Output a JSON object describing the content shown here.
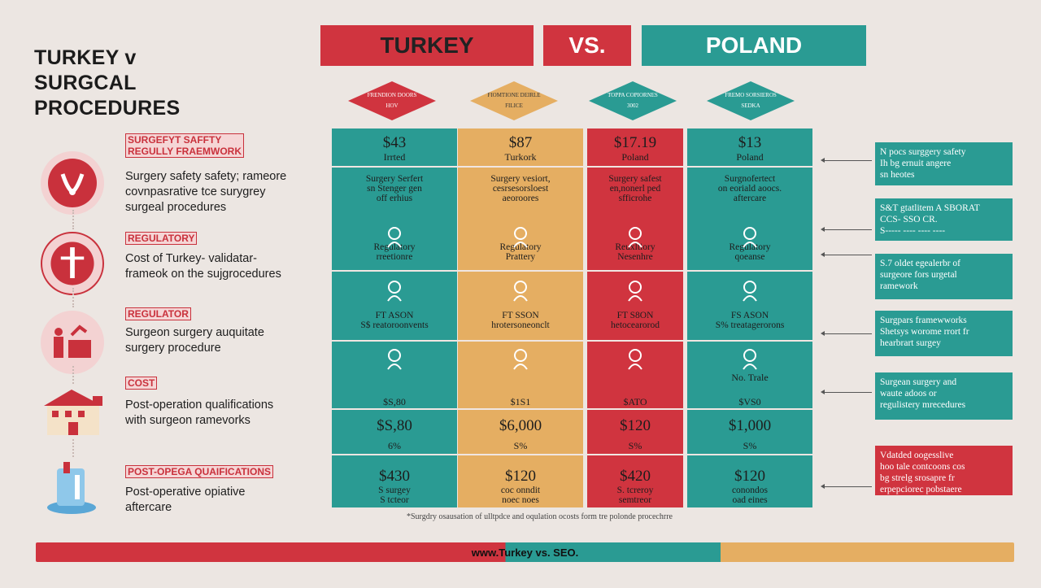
{
  "title": "TURKEY v\nSURGCAL\nPROCEDURES",
  "header": {
    "left": "TURKEY",
    "mid": "VS.",
    "right": "POLAND"
  },
  "colors": {
    "red": "#d0343f",
    "teal": "#2a9b93",
    "orange": "#e5ae62",
    "bg": "#ece6e2"
  },
  "diamonds": [
    {
      "line1": "FRENDION DOORS",
      "line2": "HOV"
    },
    {
      "line1": "FIOMTIONE DEIRLE",
      "line2": "FILICE"
    },
    {
      "line1": "TOPPA COPIORNES",
      "line2": "3002"
    },
    {
      "line1": "FREMO SORSIEROS",
      "line2": "SEDKA"
    }
  ],
  "left_items": [
    {
      "tag": "SURGEFYT SAFFTY\nREGULLY FRAEMWORK",
      "text": "Surgery safety safety; rameore\ncovnpasrative tce surygrey\nsurgeal procedures",
      "icon": "hands-icon"
    },
    {
      "tag": "REGULATORY",
      "text": "Cost of Turkey- validatar-\nframeok on the sujgrocedures",
      "icon": "regulation-icon"
    },
    {
      "tag": "REGULATOR",
      "text": "Surgeon surgery auquitate\nsurgery procedure",
      "icon": "surgeon-icon"
    },
    {
      "tag": "COST",
      "text": "Post-operation qualifications\nwith surgeon ramevorks",
      "icon": "hospital-icon"
    },
    {
      "tag": "POST-OPEGA QUAIFICATIONS",
      "text": "Post-operative opiative\naftercare",
      "icon": "aftercare-icon"
    }
  ],
  "columns": [
    {
      "price_top": "$43",
      "label_top": "Irrted",
      "desc": "Surgery Serfert\nsn Stenger gen\noff erhius",
      "reg": "Regulatory\nrreetionre",
      "fee": "FT ASON\nS$ reatoroonvents",
      "icon_label": "",
      "sv": "$S,80",
      "total": "$S,80",
      "pct": "6%",
      "price_bottom": "$430",
      "note_bottom": "S surgey\nS tcteor"
    },
    {
      "price_top": "$87",
      "label_top": "Turkork",
      "desc": "Surgery vesiort,\ncesrsesorsloest\naeoroores",
      "reg": "Regulatory\nPrattery",
      "fee": "FT SSON\nhrotersoneonclt",
      "icon_label": "",
      "sv": "$1S1",
      "total": "$6,000",
      "pct": "S%",
      "price_bottom": "$120",
      "note_bottom": "coc onndit\nnoec noes"
    },
    {
      "price_top": "$17.19",
      "label_top": "Poland",
      "desc": "Surgery safest\nen,nonerl ped\nsfficrohe",
      "reg": "Reuxltiory\nNesenhre",
      "fee": "FT S8ON\nhetocearorod",
      "icon_label": "",
      "sv": "$ATO",
      "total": "$120",
      "pct": "S%",
      "price_bottom": "$420",
      "note_bottom": "S. tcreroy\nsemtreor"
    },
    {
      "price_top": "$13",
      "label_top": "Poland",
      "desc": "Surgnofertect\non eoriald aoocs.\naftercare",
      "reg": "Regulatory\nqoeanse",
      "fee": "FS ASON\nS% treatagerorons",
      "icon_label": "No. Trale",
      "sv": "$VS0",
      "total": "$1,000",
      "pct": "S%",
      "price_bottom": "$120",
      "note_bottom": "conondos\noad eines"
    }
  ],
  "right_boxes": [
    {
      "text": "N pocs surggery safety\nIh bg ernuit angere\nsn heotes"
    },
    {
      "text": "S&T gtatlitem A SBORAT\nCCS- SSO CR.\nS----- ---- ---- ----"
    },
    {
      "text": "S.7 oldet egealerbr of\nsurgeore fors urgetal\nramework"
    },
    {
      "text": "Surgpars framewworks\nShetsys worome rrort fr\nhearbrart surgey"
    },
    {
      "text": "Surgean surgery and\nwaute adoos or\nregulistery mrecedures"
    },
    {
      "text": "Vdatded oogesslive\nhoo tale contcoons cos\nbg strelg srosapre fr\nerpepciorec pobstaere"
    }
  ],
  "footnote": "*Surgdry osausation of ulltpdce and oqulation ocosts form tre polonde procechrre",
  "footer": "www.Turkey vs. SEO."
}
